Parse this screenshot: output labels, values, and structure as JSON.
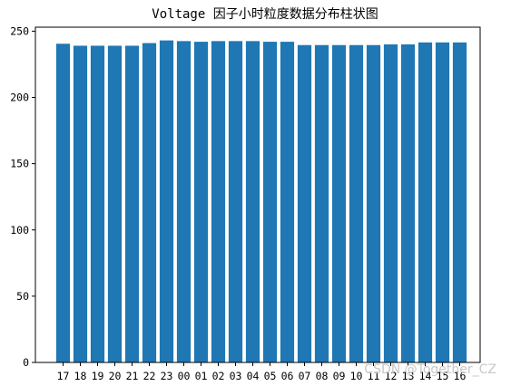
{
  "chart_data": {
    "type": "bar",
    "title": "Voltage 因子小时粒度数据分布柱状图",
    "xlabel": "",
    "ylabel": "",
    "categories": [
      "17",
      "18",
      "19",
      "20",
      "21",
      "22",
      "23",
      "00",
      "01",
      "02",
      "03",
      "04",
      "05",
      "06",
      "07",
      "08",
      "09",
      "10",
      "11",
      "12",
      "13",
      "14",
      "15",
      "16"
    ],
    "values": [
      240.5,
      239.0,
      239.0,
      239.0,
      239.0,
      241.0,
      243.0,
      242.5,
      242.0,
      242.5,
      242.5,
      242.5,
      242.0,
      242.0,
      239.5,
      239.5,
      239.5,
      239.5,
      239.5,
      240.0,
      240.0,
      241.5,
      241.5,
      241.5
    ],
    "ylim": [
      0,
      253
    ],
    "yticks": [
      0,
      50,
      100,
      150,
      200,
      250
    ],
    "bar_color": "#1f77b4",
    "grid": false,
    "legend": "none"
  },
  "watermark": "CSDN @Together_CZ"
}
